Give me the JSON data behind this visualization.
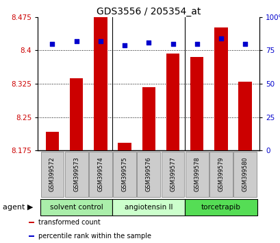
{
  "title": "GDS3556 / 205354_at",
  "categories": [
    "GSM399572",
    "GSM399573",
    "GSM399574",
    "GSM399575",
    "GSM399576",
    "GSM399577",
    "GSM399578",
    "GSM399579",
    "GSM399580"
  ],
  "bar_values": [
    8.218,
    8.337,
    8.475,
    8.192,
    8.318,
    8.393,
    8.386,
    8.451,
    8.33
  ],
  "percentile_values": [
    80,
    82,
    82,
    79,
    81,
    80,
    80,
    84,
    80
  ],
  "ylim_left": [
    8.175,
    8.475
  ],
  "ylim_right": [
    0,
    100
  ],
  "yticks_left": [
    8.175,
    8.25,
    8.325,
    8.4,
    8.475
  ],
  "yticks_right": [
    0,
    25,
    50,
    75,
    100
  ],
  "ytick_labels_left": [
    "8.175",
    "8.25",
    "8.325",
    "8.4",
    "8.475"
  ],
  "ytick_labels_right": [
    "0",
    "25",
    "50",
    "75",
    "100%"
  ],
  "bar_color": "#cc0000",
  "dot_color": "#0000cc",
  "groups": [
    {
      "label": "solvent control",
      "start": 0,
      "end": 3,
      "color": "#aaeeaa"
    },
    {
      "label": "angiotensin II",
      "start": 3,
      "end": 6,
      "color": "#ccffcc"
    },
    {
      "label": "torcetrapib",
      "start": 6,
      "end": 9,
      "color": "#55dd55"
    }
  ],
  "agent_label": "agent",
  "legend_items": [
    {
      "label": "transformed count",
      "color": "#cc0000"
    },
    {
      "label": "percentile rank within the sample",
      "color": "#0000cc"
    }
  ],
  "bar_width": 0.55,
  "grid_color": "black",
  "tick_label_color_left": "#cc0000",
  "tick_label_color_right": "#0000cc",
  "box_color": "#cccccc",
  "box_edge_color": "#888888"
}
